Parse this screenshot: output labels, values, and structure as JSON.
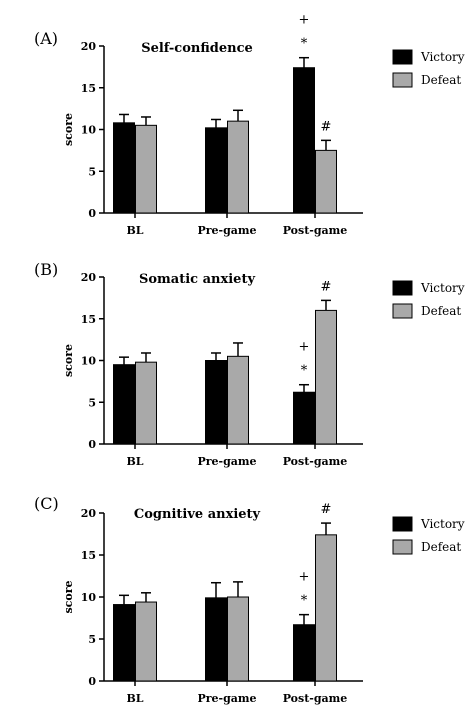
{
  "chart_data": [
    {
      "type": "bar",
      "panel_label": "(A)",
      "title": "Self-confidence",
      "ylabel": "score",
      "xlabel": "",
      "ylim": [
        0,
        20
      ],
      "yticks": [
        0,
        5,
        10,
        15,
        20
      ],
      "categories": [
        "BL",
        "Pre-game",
        "Post-game"
      ],
      "series": [
        {
          "name": "Victory",
          "color": "#000000",
          "values": [
            10.8,
            10.2,
            17.4
          ],
          "errors": [
            1.0,
            1.0,
            1.2
          ]
        },
        {
          "name": "Defeat",
          "color": "#a9a9a9",
          "values": [
            10.5,
            11.0,
            7.5
          ],
          "errors": [
            1.0,
            1.3,
            1.2
          ]
        }
      ],
      "annotations": [
        {
          "category": 2,
          "series": 0,
          "symbols": [
            "+",
            "*"
          ]
        },
        {
          "category": 2,
          "series": 1,
          "symbols": [
            "#"
          ]
        }
      ],
      "legend": "right"
    },
    {
      "type": "bar",
      "panel_label": "(B)",
      "title": "Somatic anxiety",
      "ylabel": "score",
      "xlabel": "",
      "ylim": [
        0,
        20
      ],
      "yticks": [
        0,
        5,
        10,
        15,
        20
      ],
      "categories": [
        "BL",
        "Pre-game",
        "Post-game"
      ],
      "series": [
        {
          "name": "Victory",
          "color": "#000000",
          "values": [
            9.5,
            10.0,
            6.2
          ],
          "errors": [
            0.9,
            0.9,
            0.9
          ]
        },
        {
          "name": "Defeat",
          "color": "#a9a9a9",
          "values": [
            9.8,
            10.5,
            16.0
          ],
          "errors": [
            1.1,
            1.6,
            1.2
          ]
        }
      ],
      "annotations": [
        {
          "category": 2,
          "series": 0,
          "symbols": [
            "+",
            "*"
          ]
        },
        {
          "category": 2,
          "series": 1,
          "symbols": [
            "#"
          ]
        }
      ],
      "legend": "right"
    },
    {
      "type": "bar",
      "panel_label": "(C)",
      "title": "Cognitive anxiety",
      "ylabel": "score",
      "xlabel": "",
      "ylim": [
        0,
        20
      ],
      "yticks": [
        0,
        5,
        10,
        15,
        20
      ],
      "categories": [
        "BL",
        "Pre-game",
        "Post-game"
      ],
      "series": [
        {
          "name": "Victory",
          "color": "#000000",
          "values": [
            9.1,
            9.9,
            6.7
          ],
          "errors": [
            1.1,
            1.8,
            1.2
          ]
        },
        {
          "name": "Defeat",
          "color": "#a9a9a9",
          "values": [
            9.4,
            10.0,
            17.4
          ],
          "errors": [
            1.1,
            1.8,
            1.4
          ]
        }
      ],
      "annotations": [
        {
          "category": 2,
          "series": 0,
          "symbols": [
            "+",
            "*"
          ]
        },
        {
          "category": 2,
          "series": 1,
          "symbols": [
            "#"
          ]
        }
      ],
      "legend": "right"
    }
  ]
}
